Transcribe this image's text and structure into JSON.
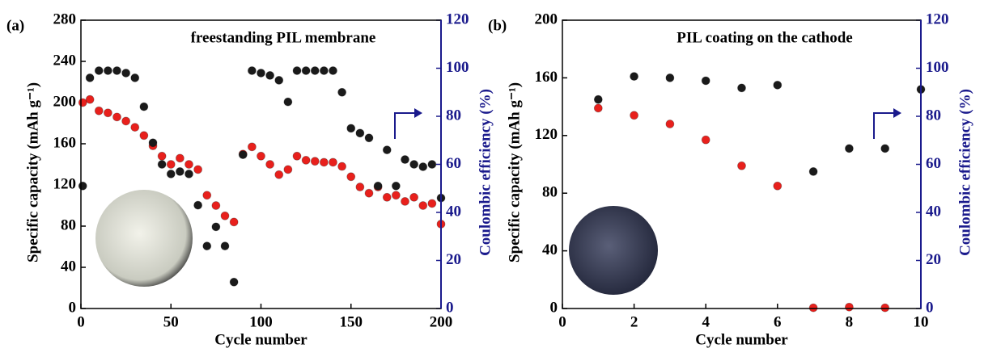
{
  "chart_data": [
    {
      "type": "scatter",
      "label": "(a)",
      "title": "freestanding PIL membrane",
      "xlabel": "Cycle number",
      "ylabel": "Specific capacity (mAh g⁻¹)",
      "y2label": "Coulombic efficiency (%)",
      "x": [
        1,
        5,
        10,
        15,
        20,
        25,
        30,
        35,
        40,
        45,
        50,
        55,
        60,
        65,
        70,
        75,
        80,
        85,
        90,
        95,
        100,
        105,
        110,
        115,
        120,
        125,
        130,
        135,
        140,
        145,
        150,
        155,
        160,
        165,
        170,
        175,
        180,
        185,
        190,
        195,
        200
      ],
      "series": [
        {
          "color": "#e8201c",
          "axis": "y",
          "values": [
            200,
            203,
            192,
            190,
            186,
            182,
            176,
            168,
            158,
            148,
            140,
            146,
            140,
            135,
            110,
            100,
            90,
            84,
            150,
            157,
            148,
            140,
            130,
            135,
            148,
            144,
            143,
            142,
            142,
            138,
            128,
            118,
            112,
            118,
            108,
            110,
            104,
            108,
            100,
            102,
            82
          ]
        },
        {
          "color": "#1a1a1a",
          "axis": "y2",
          "values": [
            51,
            96,
            99,
            99,
            99,
            98,
            96,
            84,
            69,
            60,
            56,
            57,
            56,
            43,
            26,
            34,
            26,
            11,
            64,
            99,
            98,
            97,
            95,
            86,
            99,
            99,
            99,
            99,
            99,
            90,
            75,
            73,
            71,
            51,
            66,
            51,
            62,
            60,
            59,
            60,
            46
          ]
        }
      ],
      "xlim": [
        0,
        200
      ],
      "xticks": [
        0,
        50,
        100,
        150,
        200
      ],
      "ylim": [
        0,
        280
      ],
      "yticks": [
        0,
        40,
        80,
        120,
        160,
        200,
        240,
        280
      ],
      "y2lim": [
        0,
        120
      ],
      "y2ticks": [
        0,
        20,
        40,
        60,
        80,
        100,
        120
      ]
    },
    {
      "type": "scatter",
      "label": "(b)",
      "title": "PIL coating on the cathode",
      "xlabel": "Cycle number",
      "ylabel": "Specific capacity (mAh g⁻¹)",
      "y2label": "Coulombic efficiency (%)",
      "x": [
        1,
        2,
        3,
        4,
        5,
        6,
        7,
        8,
        9,
        10
      ],
      "series": [
        {
          "color": "#e8201c",
          "axis": "y",
          "values": [
            139,
            134,
            128,
            117,
            99,
            85,
            0.5,
            1,
            0.5,
            null
          ]
        },
        {
          "color": "#1a1a1a",
          "axis": "y2",
          "values": [
            87,
            96.6,
            96,
            94.8,
            91.8,
            93,
            57,
            66.6,
            66.6,
            91.2
          ]
        }
      ],
      "xlim": [
        0,
        10
      ],
      "xticks": [
        0,
        2,
        4,
        6,
        8,
        10
      ],
      "ylim": [
        0,
        200
      ],
      "yticks": [
        0,
        40,
        80,
        120,
        160,
        200
      ],
      "y2lim": [
        0,
        120
      ],
      "y2ticks": [
        0,
        20,
        40,
        60,
        80,
        100,
        120
      ]
    }
  ]
}
